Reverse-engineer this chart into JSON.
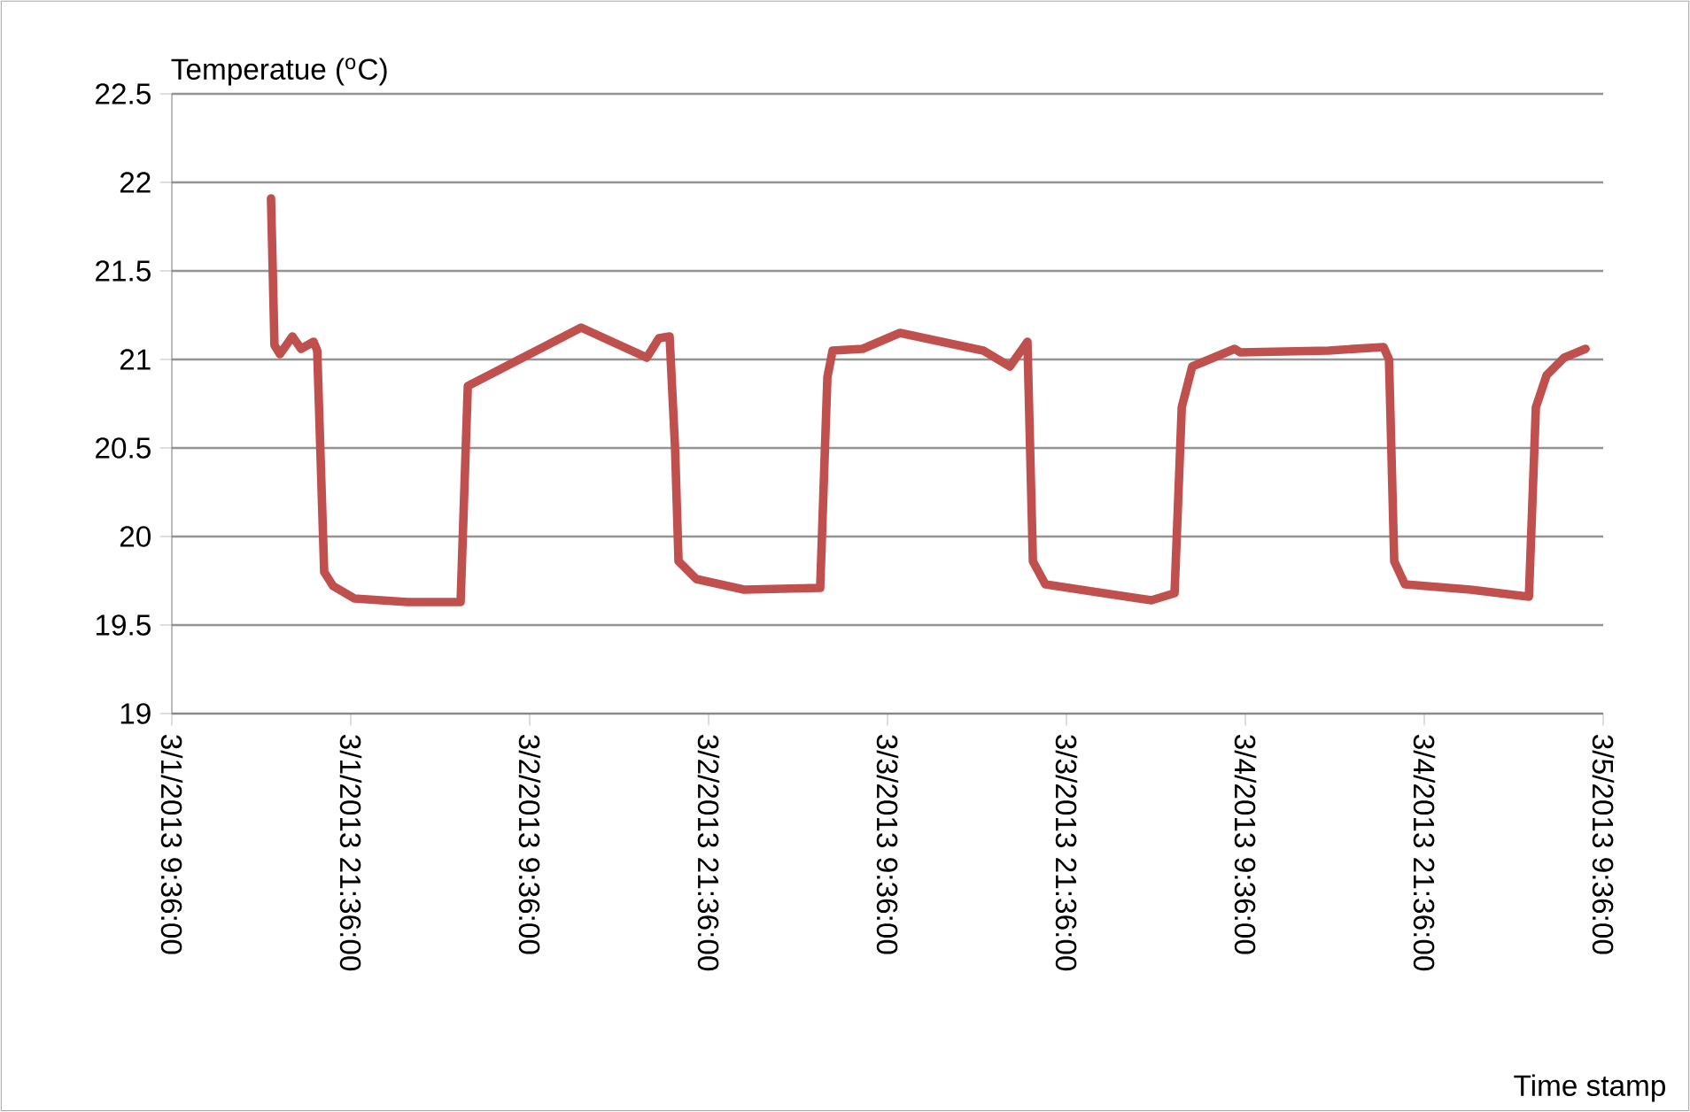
{
  "chart_data": {
    "type": "line",
    "ylabel": "Temperatue ($^{o}$C)",
    "xlabel": "Time stamp",
    "x": [
      "2013-03-01T16:15",
      "2013-03-01T16:22",
      "2013-03-01T16:29",
      "2013-03-01T16:51",
      "2013-03-01T17:41",
      "2013-03-01T18:16",
      "2013-03-01T19:06",
      "2013-03-01T19:21",
      "2013-03-01T19:49",
      "2013-03-01T20:25",
      "2013-03-01T21:50",
      "2013-03-02T01:24",
      "2013-03-02T04:58",
      "2013-03-02T05:27",
      "2013-03-02T13:03",
      "2013-03-02T17:27",
      "2013-03-02T18:16",
      "2013-03-02T18:59",
      "2013-03-02T19:21",
      "2013-03-02T19:35",
      "2013-03-02T20:46",
      "2013-03-02T23:59",
      "2013-03-03T05:05",
      "2013-03-03T05:34",
      "2013-03-03T05:55",
      "2013-03-03T07:56",
      "2013-03-03T10:26",
      "2013-03-03T16:01",
      "2013-03-03T17:48",
      "2013-03-03T18:59",
      "2013-03-03T19:21",
      "2013-03-03T20:11",
      "2013-03-04T00:06",
      "2013-03-04T03:18",
      "2013-03-04T04:51",
      "2013-03-04T05:20",
      "2013-03-04T06:02",
      "2013-03-04T08:53",
      "2013-03-04T09:15",
      "2013-03-04T15:11",
      "2013-03-04T18:52",
      "2013-03-04T19:14",
      "2013-03-04T19:35",
      "2013-03-04T20:18",
      "2013-03-05T00:42",
      "2013-03-05T04:37",
      "2013-03-05T05:05",
      "2013-03-05T05:48",
      "2013-03-05T06:59",
      "2013-03-05T08:25"
    ],
    "series": [
      {
        "color": "#c0504d",
        "values": [
          21.91,
          21.5,
          21.08,
          21.03,
          21.13,
          21.06,
          21.1,
          21.05,
          19.8,
          19.72,
          19.65,
          19.63,
          19.63,
          20.85,
          21.18,
          21.01,
          21.12,
          21.13,
          20.5,
          19.86,
          19.76,
          19.7,
          19.71,
          20.9,
          21.05,
          21.06,
          21.15,
          21.05,
          20.96,
          21.1,
          19.86,
          19.73,
          19.68,
          19.64,
          19.68,
          20.73,
          20.96,
          21.06,
          21.04,
          21.05,
          21.07,
          21.0,
          19.86,
          19.73,
          19.7,
          19.66,
          20.73,
          20.91,
          21.01,
          21.06
        ]
      }
    ],
    "xlim": [
      "2013-03-01T09:36",
      "2013-03-05T09:36"
    ],
    "xticks": [
      {
        "value": "2013-03-01T09:36",
        "label": "3/1/2013 9:36:00"
      },
      {
        "value": "2013-03-01T21:36",
        "label": "3/1/2013 21:36:00"
      },
      {
        "value": "2013-03-02T09:36",
        "label": "3/2/2013 9:36:00"
      },
      {
        "value": "2013-03-02T21:36",
        "label": "3/2/2013 21:36:00"
      },
      {
        "value": "2013-03-03T09:36",
        "label": "3/3/2013 9:36:00"
      },
      {
        "value": "2013-03-03T21:36",
        "label": "3/3/2013 21:36:00"
      },
      {
        "value": "2013-03-04T09:36",
        "label": "3/4/2013 9:36:00"
      },
      {
        "value": "2013-03-04T21:36",
        "label": "3/4/2013 21:36:00"
      },
      {
        "value": "2013-03-05T09:36",
        "label": "3/5/2013 9:36:00"
      }
    ],
    "ylim": [
      19,
      22.5
    ],
    "yticks": [
      19,
      19.5,
      20,
      20.5,
      21,
      21.5,
      22,
      22.5
    ],
    "grid": "y",
    "marker": "none",
    "line_style": "solid"
  }
}
